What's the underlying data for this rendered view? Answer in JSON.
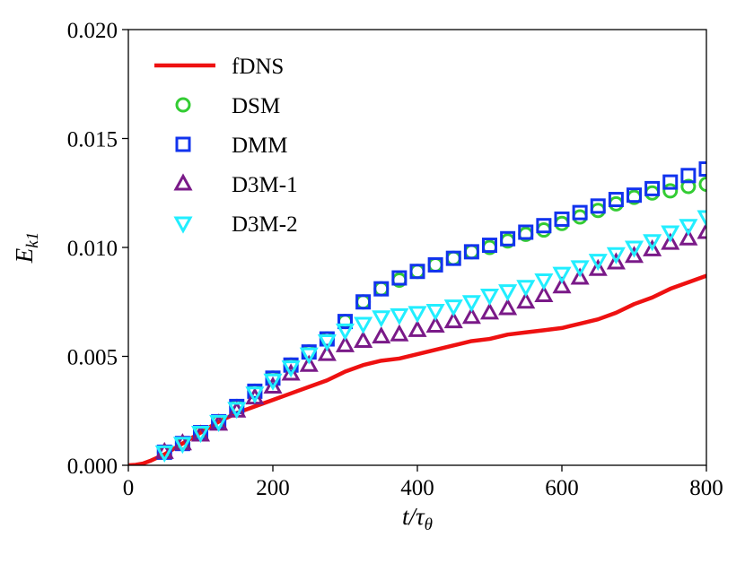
{
  "chart_data": {
    "type": "line",
    "xlabel": "t/τθ",
    "ylabel": "Ek1",
    "xlim": [
      0,
      800
    ],
    "ylim": [
      0,
      0.02
    ],
    "xticks": [
      0,
      200,
      400,
      600,
      800
    ],
    "xtick_labels": [
      "0",
      "200",
      "400",
      "600",
      "800"
    ],
    "yticks": [
      0,
      0.005,
      0.01,
      0.015,
      0.02
    ],
    "ytick_labels": [
      "0.000",
      "0.005",
      "0.010",
      "0.015",
      "0.020"
    ],
    "grid": false,
    "legend_position": "top-left",
    "series": [
      {
        "name": "fDNS",
        "style": "line",
        "color": "#ee1111",
        "x": [
          0,
          10,
          20,
          30,
          40,
          50,
          60,
          75,
          100,
          125,
          150,
          175,
          200,
          225,
          250,
          275,
          300,
          325,
          350,
          375,
          400,
          425,
          450,
          475,
          500,
          525,
          550,
          575,
          600,
          625,
          650,
          675,
          700,
          725,
          750,
          775,
          800
        ],
        "y": [
          0.0,
          2e-05,
          8e-05,
          0.0002,
          0.00035,
          0.0005,
          0.0007,
          0.001,
          0.0015,
          0.002,
          0.0024,
          0.0027,
          0.003,
          0.0033,
          0.0036,
          0.0039,
          0.0043,
          0.0046,
          0.0048,
          0.0049,
          0.0051,
          0.0053,
          0.0055,
          0.0057,
          0.0058,
          0.006,
          0.0061,
          0.0062,
          0.0063,
          0.0065,
          0.0067,
          0.007,
          0.0074,
          0.0077,
          0.0081,
          0.0084,
          0.0087
        ]
      },
      {
        "name": "DSM",
        "style": "marker",
        "marker": "circle",
        "color": "#33cc33",
        "x": [
          50,
          75,
          100,
          125,
          150,
          175,
          200,
          225,
          250,
          275,
          300,
          325,
          350,
          375,
          400,
          425,
          450,
          475,
          500,
          525,
          550,
          575,
          600,
          625,
          650,
          675,
          700,
          725,
          750,
          775,
          800
        ],
        "y": [
          0.0006,
          0.001,
          0.0015,
          0.002,
          0.0027,
          0.0034,
          0.004,
          0.0046,
          0.0052,
          0.0058,
          0.0066,
          0.0075,
          0.0081,
          0.0085,
          0.0089,
          0.0092,
          0.0095,
          0.0098,
          0.01,
          0.0103,
          0.0106,
          0.0108,
          0.0111,
          0.0114,
          0.0117,
          0.012,
          0.0123,
          0.0125,
          0.0126,
          0.0128,
          0.0129
        ]
      },
      {
        "name": "DMM",
        "style": "marker",
        "marker": "square",
        "color": "#1133ee",
        "x": [
          50,
          75,
          100,
          125,
          150,
          175,
          200,
          225,
          250,
          275,
          300,
          325,
          350,
          375,
          400,
          425,
          450,
          475,
          500,
          525,
          550,
          575,
          600,
          625,
          650,
          675,
          700,
          725,
          750,
          775,
          800
        ],
        "y": [
          0.0006,
          0.001,
          0.0015,
          0.002,
          0.0027,
          0.0034,
          0.004,
          0.0046,
          0.0052,
          0.0058,
          0.0066,
          0.0075,
          0.0081,
          0.0086,
          0.0089,
          0.0092,
          0.0095,
          0.0098,
          0.0101,
          0.0104,
          0.0107,
          0.011,
          0.0113,
          0.0116,
          0.0119,
          0.0122,
          0.0124,
          0.0127,
          0.013,
          0.0133,
          0.0136
        ]
      },
      {
        "name": "D3M-1",
        "style": "marker",
        "marker": "triangle-up",
        "color": "#7a1a88",
        "x": [
          50,
          75,
          100,
          125,
          150,
          175,
          200,
          225,
          250,
          275,
          300,
          325,
          350,
          375,
          400,
          425,
          450,
          475,
          500,
          525,
          550,
          575,
          600,
          625,
          650,
          675,
          700,
          725,
          750,
          775,
          800
        ],
        "y": [
          0.0006,
          0.001,
          0.0014,
          0.0019,
          0.0025,
          0.0031,
          0.0036,
          0.0042,
          0.0046,
          0.0051,
          0.0055,
          0.0057,
          0.0059,
          0.006,
          0.0062,
          0.0064,
          0.0066,
          0.0068,
          0.007,
          0.0072,
          0.0075,
          0.0078,
          0.0082,
          0.0086,
          0.009,
          0.0093,
          0.0096,
          0.0099,
          0.0102,
          0.0104,
          0.0107
        ]
      },
      {
        "name": "D3M-2",
        "style": "marker",
        "marker": "triangle-down",
        "color": "#22eeff",
        "x": [
          50,
          75,
          100,
          125,
          150,
          175,
          200,
          225,
          250,
          275,
          300,
          325,
          350,
          375,
          400,
          425,
          450,
          475,
          500,
          525,
          550,
          575,
          600,
          625,
          650,
          675,
          700,
          725,
          750,
          775,
          800
        ],
        "y": [
          0.0006,
          0.001,
          0.0015,
          0.002,
          0.0026,
          0.0033,
          0.0039,
          0.0045,
          0.0051,
          0.0057,
          0.0062,
          0.0065,
          0.0068,
          0.0069,
          0.007,
          0.0071,
          0.0073,
          0.0075,
          0.0078,
          0.008,
          0.0082,
          0.0085,
          0.0088,
          0.0091,
          0.0094,
          0.0097,
          0.01,
          0.0103,
          0.0107,
          0.011,
          0.0114
        ]
      }
    ]
  }
}
